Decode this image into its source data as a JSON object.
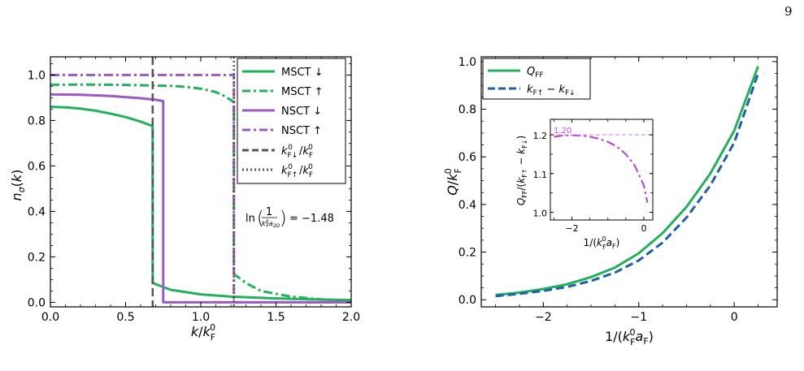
{
  "page": {
    "number": "9"
  },
  "chart_data": [
    {
      "type": "line",
      "xlabel": "k/k_F^0",
      "ylabel": "n_σ(k)",
      "xlim": [
        0.0,
        2.0
      ],
      "ylim": [
        -0.02,
        1.08
      ],
      "xticks": [
        "0.0",
        "0.5",
        "1.0",
        "1.5",
        "2.0"
      ],
      "yticks": [
        "0.0",
        "0.2",
        "0.4",
        "0.6",
        "0.8",
        "1.0"
      ],
      "grid": false,
      "legend_position": "top-right",
      "annotation": "ln(1/(k_F^0 a_2D)) = −1.48",
      "series": [
        {
          "name": "MSCT ↓",
          "color": "#22b05a",
          "style": "solid",
          "x": [
            0.0,
            0.1,
            0.2,
            0.3,
            0.4,
            0.5,
            0.6,
            0.68,
            0.68,
            0.8,
            1.0,
            1.2,
            1.5,
            1.8,
            2.0
          ],
          "y": [
            0.86,
            0.858,
            0.852,
            0.843,
            0.83,
            0.815,
            0.795,
            0.775,
            0.085,
            0.055,
            0.035,
            0.025,
            0.017,
            0.012,
            0.01
          ]
        },
        {
          "name": "MSCT ↑",
          "color": "#22b05a",
          "style": "dashdot",
          "x": [
            0.0,
            0.2,
            0.4,
            0.6,
            0.8,
            0.9,
            1.0,
            1.1,
            1.15,
            1.2,
            1.22,
            1.22,
            1.3,
            1.4,
            1.6,
            1.8,
            2.0
          ],
          "y": [
            0.957,
            0.958,
            0.957,
            0.955,
            0.952,
            0.948,
            0.94,
            0.925,
            0.91,
            0.89,
            0.88,
            0.125,
            0.085,
            0.05,
            0.025,
            0.013,
            0.008
          ]
        },
        {
          "name": "NSCT ↓",
          "color": "#9b59c1",
          "style": "solid",
          "x": [
            0.0,
            0.2,
            0.4,
            0.6,
            0.7,
            0.75,
            0.75,
            2.0
          ],
          "y": [
            0.915,
            0.913,
            0.908,
            0.898,
            0.891,
            0.885,
            0.0,
            0.0
          ]
        },
        {
          "name": "NSCT ↑",
          "color": "#9b59c1",
          "style": "dashdot",
          "x": [
            0.0,
            0.6,
            1.2,
            1.22,
            1.22,
            2.0
          ],
          "y": [
            1.0,
            1.0,
            1.0,
            1.0,
            0.0,
            0.0
          ]
        },
        {
          "name": "k_F↓^0/k_F^0",
          "color": "#555555",
          "style": "dashed",
          "vertical": 0.68
        },
        {
          "name": "k_F↑^0/k_F^0",
          "color": "#555555",
          "style": "dotted",
          "vertical": 1.22
        }
      ]
    },
    {
      "type": "line",
      "xlabel": "1/(k_F^0 a_F)",
      "ylabel": "Q/k_F^0",
      "xlim": [
        -2.65,
        0.45
      ],
      "ylim": [
        -0.03,
        1.02
      ],
      "xticks": [
        "−2",
        "−1",
        "0"
      ],
      "yticks": [
        "0.0",
        "0.2",
        "0.4",
        "0.6",
        "0.8",
        "1.0"
      ],
      "grid": false,
      "legend_position": "top-left",
      "series": [
        {
          "name": "Q_FF",
          "color": "#22b05a",
          "style": "solid",
          "x": [
            -2.5,
            -2.25,
            -2.0,
            -1.75,
            -1.5,
            -1.25,
            -1.0,
            -0.75,
            -0.5,
            -0.25,
            0.0,
            0.25
          ],
          "y": [
            0.02,
            0.03,
            0.045,
            0.065,
            0.095,
            0.135,
            0.195,
            0.28,
            0.39,
            0.53,
            0.71,
            0.98
          ]
        },
        {
          "name": "k_F↑ − k_F↓",
          "color": "#1f5fa6",
          "style": "dashed",
          "x": [
            -2.5,
            -2.25,
            -2.0,
            -1.75,
            -1.5,
            -1.25,
            -1.0,
            -0.75,
            -0.5,
            -0.25,
            0.0,
            0.25
          ],
          "y": [
            0.015,
            0.025,
            0.037,
            0.054,
            0.079,
            0.114,
            0.165,
            0.24,
            0.345,
            0.48,
            0.66,
            0.95
          ]
        }
      ],
      "inset": {
        "type": "line",
        "xlabel": "1/(k_F^0 a_F)",
        "ylabel": "Q_FF/(k_F↑ − k_F↓)",
        "xlim": [
          -2.6,
          0.25
        ],
        "ylim": [
          0.98,
          1.24
        ],
        "xticks": [
          "−2",
          "0"
        ],
        "yticks": [
          "1.0",
          "1.1",
          "1.2"
        ],
        "reference_label": "1.20",
        "series": [
          {
            "name": "",
            "color": "#b23fd6",
            "style": "dashdot",
            "x": [
              -2.5,
              -2.25,
              -2.0,
              -1.75,
              -1.5,
              -1.25,
              -1.0,
              -0.75,
              -0.5,
              -0.25,
              0.0,
              0.1
            ],
            "y": [
              1.195,
              1.198,
              1.199,
              1.198,
              1.195,
              1.19,
              1.182,
              1.17,
              1.15,
              1.12,
              1.07,
              1.025
            ]
          },
          {
            "name": "",
            "color": "#d98be8",
            "style": "dashed",
            "horizontal": 1.2
          }
        ]
      }
    }
  ],
  "legend1": [
    {
      "label": "MSCT ↓"
    },
    {
      "label": "MSCT ↑"
    },
    {
      "label": "NSCT ↓"
    },
    {
      "label": "NSCT ↑"
    }
  ],
  "legend2": [
    {
      "label": "Q"
    },
    {
      "label": "k"
    }
  ]
}
